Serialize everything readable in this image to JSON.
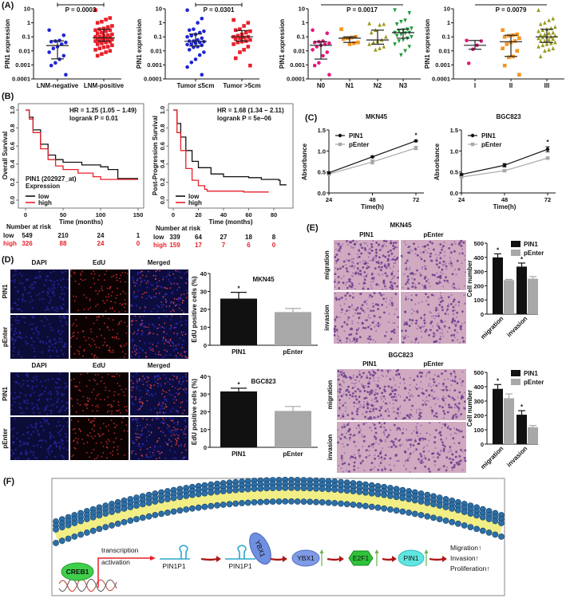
{
  "panel_labels": {
    "A": "(A)",
    "B": "(B)",
    "C": "(C)",
    "D": "(D)",
    "E": "(E)",
    "F": "(F)"
  },
  "colors": {
    "blue": "#1f25d6",
    "red": "#e8202a",
    "pink": "#e4187c",
    "orange": "#f7931e",
    "olive": "#9a9a1e",
    "green": "#1e9a3c",
    "black": "#111111",
    "gray": "#a8a8a8",
    "membrane_head": "#2c6fa6",
    "membrane_tail": "#f2ee86"
  },
  "panel_D": {
    "headers": [
      "DAPI",
      "EdU",
      "Merged"
    ],
    "rows": [
      "PIN1",
      "pEnter"
    ]
  },
  "panel_E": {
    "titles": [
      "MKN45",
      "BGC823"
    ],
    "columns": [
      "PIN1",
      "pEnter"
    ],
    "rows": [
      "migration",
      "invasion"
    ]
  },
  "diagram": {
    "creb1": "CREB1",
    "transcription": "transcription",
    "activation": "activation",
    "pin1p1_a": "PIN1P1",
    "pin1p1_b": "PIN1P1",
    "ybx1_bound": "YBX1",
    "ybx1": "YBX1",
    "e2f1": "E2F1",
    "pin1": "PIN1",
    "outcomes": [
      "Migration↑",
      "Invasion↑",
      "Proliferation↑"
    ]
  },
  "chart_data": [
    {
      "type": "scatter",
      "ylabel": "PIN1 expression",
      "yscale": "log",
      "ylim": [
        0.0001,
        10
      ],
      "yticks": [
        "10",
        "1",
        "0.1",
        "0.01",
        "0.001",
        "0.0001"
      ],
      "categories": [
        "LNM-negative",
        "LNM-positive"
      ],
      "p_label": "P = 0.0003",
      "groups": [
        {
          "color": "#1f25d6",
          "marker": "circle",
          "median": 0.024,
          "iqr": [
            0.0027,
            0.052
          ],
          "points": [
            0.3,
            0.13,
            0.055,
            0.05,
            0.045,
            0.04,
            0.03,
            0.02,
            0.015,
            0.008,
            0.0045,
            0.0025,
            0.0014,
            0.0009,
            0.0002
          ]
        },
        {
          "color": "#e8202a",
          "marker": "square",
          "median": 0.085,
          "iqr": [
            0.05,
            0.35
          ],
          "points": [
            8,
            2.2,
            1.7,
            1.2,
            1.0,
            0.6,
            0.5,
            0.4,
            0.35,
            0.3,
            0.3,
            0.25,
            0.2,
            0.18,
            0.15,
            0.13,
            0.12,
            0.1,
            0.1,
            0.09,
            0.085,
            0.08,
            0.07,
            0.065,
            0.06,
            0.055,
            0.05,
            0.05,
            0.045,
            0.04,
            0.035,
            0.03,
            0.025,
            0.02,
            0.018,
            0.015,
            0.012,
            0.01,
            0.008,
            0.006,
            0.0045
          ]
        }
      ]
    },
    {
      "type": "scatter",
      "ylabel": "PIN1 expression",
      "yscale": "log",
      "ylim": [
        0.0001,
        10
      ],
      "yticks": [
        "10",
        "1",
        "0.1",
        "0.01",
        "0.001",
        "0.0001"
      ],
      "categories": [
        "Tumor ≤5cm",
        "Tumor >5cm"
      ],
      "p_label": "P = 0.0301",
      "groups": [
        {
          "color": "#1f25d6",
          "marker": "circle",
          "median": 0.048,
          "iqr": [
            0.022,
            0.16
          ],
          "points": [
            8,
            2,
            1,
            0.35,
            0.3,
            0.25,
            0.2,
            0.15,
            0.12,
            0.1,
            0.08,
            0.06,
            0.05,
            0.05,
            0.045,
            0.04,
            0.035,
            0.03,
            0.028,
            0.025,
            0.02,
            0.018,
            0.012,
            0.008,
            0.005,
            0.0025,
            0.0015,
            0.0007,
            0.0002
          ]
        },
        {
          "color": "#e8202a",
          "marker": "square",
          "median": 0.1,
          "iqr": [
            0.05,
            0.28
          ],
          "points": [
            1.6,
            1.0,
            0.6,
            0.35,
            0.3,
            0.25,
            0.2,
            0.15,
            0.12,
            0.1,
            0.1,
            0.09,
            0.08,
            0.07,
            0.06,
            0.05,
            0.045,
            0.04,
            0.03,
            0.02,
            0.012,
            0.008,
            0.003,
            0.0009
          ]
        }
      ]
    },
    {
      "type": "scatter",
      "ylabel": "PIN1 expression",
      "yscale": "log",
      "ylim": [
        0.0001,
        10
      ],
      "yticks": [
        "10",
        "1",
        "0.1",
        "0.01",
        "0.001",
        "0.0001"
      ],
      "categories": [
        "N0",
        "N1",
        "N2",
        "N3"
      ],
      "p_label": "P = 0.0017",
      "groups": [
        {
          "color": "#e4187c",
          "marker": "circle",
          "median": 0.025,
          "iqr": [
            0.0026,
            0.045
          ],
          "points": [
            0.3,
            0.18,
            0.05,
            0.045,
            0.04,
            0.035,
            0.03,
            0.025,
            0.02,
            0.012,
            0.008,
            0.0045,
            0.0014,
            0.0009,
            0.0002
          ]
        },
        {
          "color": "#f7931e",
          "marker": "square",
          "median": 0.08,
          "iqr": [
            0.04,
            0.1
          ],
          "points": [
            0.35,
            0.1,
            0.09,
            0.08,
            0.07,
            0.04,
            0.035,
            0.03
          ]
        },
        {
          "color": "#9a9a1e",
          "marker": "triangle",
          "median": 0.06,
          "iqr": [
            0.03,
            0.3
          ],
          "points": [
            0.9,
            0.8,
            0.7,
            0.3,
            0.2,
            0.1,
            0.06,
            0.05,
            0.04,
            0.03,
            0.02,
            0.015,
            0.012
          ]
        },
        {
          "color": "#1e9a3c",
          "marker": "triangle-down",
          "median": 0.2,
          "iqr": [
            0.08,
            0.35
          ],
          "points": [
            8,
            5,
            1.5,
            1.2,
            0.8,
            0.4,
            0.35,
            0.3,
            0.25,
            0.2,
            0.2,
            0.18,
            0.15,
            0.12,
            0.1,
            0.08,
            0.06,
            0.05,
            0.03,
            0.02,
            0.01,
            0.005
          ]
        }
      ]
    },
    {
      "type": "scatter",
      "ylabel": "PIN1 expression",
      "yscale": "log",
      "ylim": [
        0.0001,
        10
      ],
      "yticks": [
        "10",
        "1",
        "0.1",
        "0.01",
        "0.001",
        "0.0001"
      ],
      "categories": [
        "I",
        "II",
        "III"
      ],
      "p_label": "P = 0.0079",
      "groups": [
        {
          "color": "#e4187c",
          "marker": "circle",
          "median": 0.025,
          "iqr": [
            0.013,
            0.055
          ],
          "points": [
            0.055,
            0.05,
            0.025,
            0.013,
            0.0013
          ]
        },
        {
          "color": "#f7931e",
          "marker": "square",
          "median": 0.045,
          "iqr": [
            0.004,
            0.13
          ],
          "points": [
            0.3,
            0.15,
            0.13,
            0.12,
            0.1,
            0.08,
            0.05,
            0.04,
            0.03,
            0.015,
            0.01,
            0.004,
            0.0035,
            0.0009,
            0.0002
          ]
        },
        {
          "color": "#9a9a1e",
          "marker": "triangle",
          "median": 0.1,
          "iqr": [
            0.04,
            0.35
          ],
          "points": [
            8,
            2,
            1.5,
            1,
            0.8,
            0.5,
            0.4,
            0.35,
            0.3,
            0.25,
            0.2,
            0.18,
            0.15,
            0.13,
            0.12,
            0.1,
            0.1,
            0.09,
            0.08,
            0.07,
            0.06,
            0.05,
            0.05,
            0.04,
            0.035,
            0.03,
            0.025,
            0.02,
            0.015,
            0.012,
            0.01,
            0.004
          ]
        }
      ]
    },
    {
      "type": "line",
      "subtype": "kaplan-meier",
      "xlabel": "Time (months)",
      "ylabel": "Overall Survival",
      "xlim": [
        0,
        150
      ],
      "ylim": [
        0,
        1
      ],
      "xticks": [
        "0",
        "50",
        "100",
        "150"
      ],
      "yticks": [
        "0.0",
        "0.2",
        "0.4",
        "0.6",
        "0.8",
        "1.0"
      ],
      "annotation": [
        "HR = 1.25 (1.05 − 1.49)",
        "logrank P = 0.01"
      ],
      "legend_title": [
        "PIN1 (202927_at)",
        "Expression"
      ],
      "series": [
        {
          "name": "low",
          "color": "#111111",
          "points": [
            [
              0,
              1
            ],
            [
              5,
              0.92
            ],
            [
              10,
              0.78
            ],
            [
              20,
              0.62
            ],
            [
              30,
              0.5
            ],
            [
              40,
              0.45
            ],
            [
              50,
              0.42
            ],
            [
              75,
              0.39
            ],
            [
              100,
              0.37
            ],
            [
              110,
              0.34
            ],
            [
              123,
              0.34
            ],
            [
              123,
              0.24
            ],
            [
              150,
              0.24
            ]
          ]
        },
        {
          "name": "high",
          "color": "#e8202a",
          "points": [
            [
              0,
              1
            ],
            [
              5,
              0.9
            ],
            [
              10,
              0.75
            ],
            [
              20,
              0.57
            ],
            [
              30,
              0.45
            ],
            [
              40,
              0.38
            ],
            [
              50,
              0.34
            ],
            [
              70,
              0.3
            ],
            [
              90,
              0.26
            ],
            [
              100,
              0.23
            ],
            [
              150,
              0.23
            ]
          ]
        }
      ],
      "risk_table": {
        "title": "Number at risk",
        "times": [
          0,
          50,
          100,
          150
        ],
        "rows": [
          {
            "label": "low",
            "values": [
              "549",
              "210",
              "24",
              "1"
            ]
          },
          {
            "label": "high",
            "values": [
              "326",
              "88",
              "24",
              "0"
            ]
          }
        ]
      }
    },
    {
      "type": "line",
      "subtype": "kaplan-meier",
      "xlabel": "Time (months)",
      "ylabel": "Post-Progression Survival",
      "xlim": [
        0,
        90
      ],
      "ylim": [
        0,
        1
      ],
      "xticks": [
        "0",
        "20",
        "40",
        "60",
        "80"
      ],
      "yticks": [
        "0.0",
        "0.2",
        "0.4",
        "0.6",
        "0.8",
        "1.0"
      ],
      "annotation": [
        "HR = 1.68 (1.34 − 2.11)",
        "logrank P = 5e−06"
      ],
      "series": [
        {
          "name": "low",
          "color": "#111111",
          "points": [
            [
              0,
              1
            ],
            [
              3,
              0.85
            ],
            [
              6,
              0.7
            ],
            [
              10,
              0.55
            ],
            [
              15,
              0.43
            ],
            [
              20,
              0.36
            ],
            [
              30,
              0.29
            ],
            [
              40,
              0.26
            ],
            [
              60,
              0.25
            ],
            [
              70,
              0.23
            ],
            [
              84,
              0.22
            ],
            [
              85,
              0.17
            ],
            [
              90,
              0.17
            ]
          ]
        },
        {
          "name": "high",
          "color": "#e8202a",
          "points": [
            [
              0,
              1
            ],
            [
              3,
              0.75
            ],
            [
              6,
              0.55
            ],
            [
              10,
              0.35
            ],
            [
              15,
              0.22
            ],
            [
              20,
              0.16
            ],
            [
              25,
              0.12
            ],
            [
              27,
              0.1
            ],
            [
              55,
              0.1
            ],
            [
              56,
              0.09
            ],
            [
              76,
              0.09
            ]
          ]
        }
      ],
      "risk_table": {
        "title": "Number at risk",
        "times": [
          0,
          20,
          40,
          60,
          80
        ],
        "rows": [
          {
            "label": "low",
            "values": [
              "339",
              "64",
              "27",
              "18",
              "8"
            ]
          },
          {
            "label": "high",
            "values": [
              "159",
              "17",
              "7",
              "6",
              "0"
            ]
          }
        ]
      }
    },
    {
      "type": "line",
      "title": "MKN45",
      "xlabel": "Time(h)",
      "ylabel": "Absorbance",
      "x": [
        24,
        48,
        72
      ],
      "xticks": [
        "24",
        "48",
        "72"
      ],
      "ylim": [
        0,
        1.5
      ],
      "yticks": [
        "0.0",
        "0.5",
        "1.0",
        "1.5"
      ],
      "series": [
        {
          "name": "PIN1",
          "color": "#111111",
          "marker": "circle",
          "values": [
            0.48,
            0.86,
            1.24
          ],
          "err": [
            0.02,
            0.02,
            0.02
          ]
        },
        {
          "name": "pEnter",
          "color": "#a8a8a8",
          "marker": "square",
          "values": [
            0.45,
            0.74,
            1.07
          ],
          "err": [
            0.02,
            0.05,
            0.04
          ]
        }
      ],
      "significance": [
        "",
        "",
        "*"
      ]
    },
    {
      "type": "line",
      "title": "BGC823",
      "xlabel": "Time(h)",
      "ylabel": "Absorbance",
      "x": [
        24,
        48,
        72
      ],
      "xticks": [
        "24",
        "48",
        "72"
      ],
      "ylim": [
        0,
        1.5
      ],
      "yticks": [
        "0.0",
        "0.5",
        "1.0",
        "1.5"
      ],
      "series": [
        {
          "name": "PIN1",
          "color": "#111111",
          "marker": "circle",
          "values": [
            0.44,
            0.66,
            1.04
          ],
          "err": [
            0.02,
            0.04,
            0.06
          ]
        },
        {
          "name": "pEnter",
          "color": "#a8a8a8",
          "marker": "square",
          "values": [
            0.38,
            0.53,
            0.83
          ],
          "err": [
            0.02,
            0.02,
            0.02
          ]
        }
      ],
      "significance": [
        "",
        "",
        "*"
      ]
    },
    {
      "type": "bar",
      "title": "MKN45",
      "ylabel": "EdU positive cells (%)",
      "categories": [
        "PIN1",
        "pEnter"
      ],
      "values": [
        26,
        18.5
      ],
      "err": [
        3.5,
        2
      ],
      "colors": [
        "#111111",
        "#a8a8a8"
      ],
      "significance": [
        "*",
        ""
      ],
      "ylim": [
        0,
        40
      ],
      "yticks": [
        "0",
        "10",
        "20",
        "30",
        "40"
      ]
    },
    {
      "type": "bar",
      "title": "BGC823",
      "ylabel": "EdU positive cells (%)",
      "categories": [
        "PIN1",
        "pEnter"
      ],
      "values": [
        31.5,
        20.5
      ],
      "err": [
        1.8,
        2.5
      ],
      "colors": [
        "#111111",
        "#a8a8a8"
      ],
      "significance": [
        "*",
        ""
      ],
      "ylim": [
        0,
        40
      ],
      "yticks": [
        "0",
        "10",
        "20",
        "30",
        "40"
      ]
    },
    {
      "type": "bar",
      "ylabel": "Cell number",
      "categories": [
        "migration",
        "invasion"
      ],
      "series": [
        {
          "name": "PIN1",
          "color": "#111111",
          "values": [
            400,
            335
          ],
          "err": [
            25,
            25
          ],
          "significance": [
            "*",
            "*"
          ]
        },
        {
          "name": "pEnter",
          "color": "#a8a8a8",
          "values": [
            240,
            250
          ],
          "err": [
            5,
            15
          ],
          "significance": [
            "",
            ""
          ]
        }
      ],
      "ylim": [
        0,
        500
      ],
      "yticks": [
        "0",
        "100",
        "200",
        "300",
        "400",
        "500"
      ],
      "legend": "top-right"
    },
    {
      "type": "bar",
      "ylabel": "Cell number",
      "categories": [
        "migration",
        "invasion"
      ],
      "series": [
        {
          "name": "PIN1",
          "color": "#111111",
          "values": [
            385,
            205
          ],
          "err": [
            30,
            28
          ],
          "significance": [
            "*",
            "*"
          ]
        },
        {
          "name": "pEnter",
          "color": "#a8a8a8",
          "values": [
            320,
            118
          ],
          "err": [
            30,
            12
          ],
          "significance": [
            "",
            ""
          ]
        }
      ],
      "ylim": [
        0,
        500
      ],
      "yticks": [
        "0",
        "100",
        "200",
        "300",
        "400",
        "500"
      ],
      "legend": "top-right"
    }
  ]
}
